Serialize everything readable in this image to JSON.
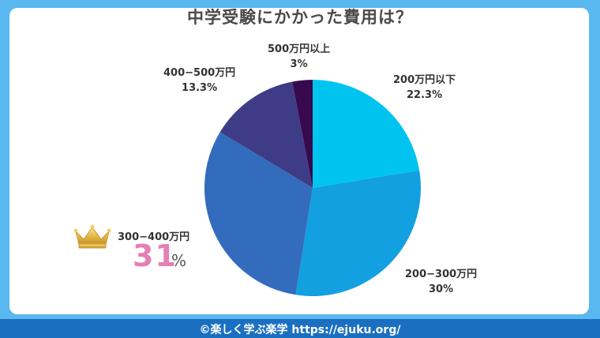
{
  "title": "中学受験にかかった費用は？",
  "footer": "©楽しく学ぶ楽学 https://ejuku.org/",
  "chart_data": {
    "type": "pie",
    "title": "中学受験にかかった費用は？",
    "slices": [
      {
        "label": "200万円以下",
        "value": 22.3,
        "value_text": "22.3%",
        "color": "#00c4f0"
      },
      {
        "label": "200−300万円",
        "value": 30,
        "value_text": "30%",
        "color": "#13a0e0"
      },
      {
        "label": "300−400万円",
        "value": 31,
        "value_text": "31",
        "unit": "%",
        "color": "#336cbd"
      },
      {
        "label": "400−500万円",
        "value": 13.3,
        "value_text": "13.3%",
        "color": "#3f3c87"
      },
      {
        "label": "500万円以上",
        "value": 3,
        "value_text": "3%",
        "color": "#360a4c"
      }
    ],
    "highlight": "300−400万円"
  }
}
